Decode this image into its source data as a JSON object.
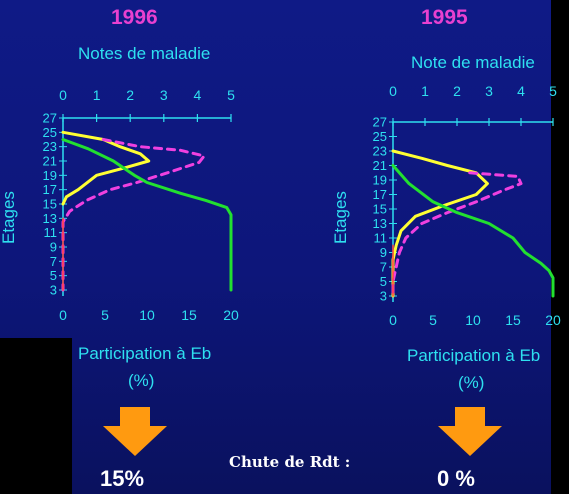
{
  "chart_data": [
    {
      "type": "line",
      "title": "1996",
      "xlabel_top": "Notes de maladie",
      "xlabel_bottom": "Participation à Eb",
      "xlabel_bottom_unit": "(%)",
      "ylabel": "Etages",
      "xlim_top": [
        0,
        5
      ],
      "xticks_top": [
        0,
        1,
        2,
        3,
        4,
        5
      ],
      "xlim_bottom": [
        0,
        20
      ],
      "xticks_bottom": [
        0,
        5,
        10,
        15,
        20
      ],
      "ylim": [
        3,
        27
      ],
      "yticks": [
        3,
        5,
        7,
        9,
        11,
        13,
        15,
        17,
        19,
        21,
        23,
        25,
        27
      ],
      "series": [
        {
          "color": "#ffff33",
          "style": "solid",
          "axis": "top",
          "points": [
            [
              0,
              25
            ],
            [
              1.2,
              24
            ],
            [
              1.7,
              23
            ],
            [
              2.3,
              22
            ],
            [
              2.55,
              21
            ],
            [
              1.8,
              20
            ],
            [
              1.0,
              19
            ],
            [
              0.45,
              17
            ],
            [
              0.1,
              16
            ],
            [
              0,
              15
            ]
          ]
        },
        {
          "color": "#f040e0",
          "style": "dashed",
          "axis": "top",
          "points": [
            [
              1.2,
              24
            ],
            [
              2.3,
              23
            ],
            [
              3.5,
              22.5
            ],
            [
              4.2,
              21.7
            ],
            [
              4.05,
              20.8
            ],
            [
              3.2,
              19.5
            ],
            [
              2.2,
              18
            ],
            [
              1.4,
              17
            ],
            [
              0.7,
              15.5
            ],
            [
              0.2,
              14
            ],
            [
              0,
              12.5
            ],
            [
              0,
              3
            ]
          ]
        },
        {
          "color": "#22e030",
          "style": "solid",
          "axis": "bottom",
          "points": [
            [
              0,
              24
            ],
            [
              3,
              22.7
            ],
            [
              6,
              21
            ],
            [
              8.5,
              19
            ],
            [
              10,
              18
            ],
            [
              14,
              16.5
            ],
            [
              17,
              15.5
            ],
            [
              19.5,
              14.5
            ],
            [
              20,
              13.5
            ],
            [
              20,
              3
            ]
          ]
        },
        {
          "color": "#ff4040",
          "style": "solid",
          "axis": "top",
          "points": [
            [
              0,
              3
            ],
            [
              0,
              13
            ]
          ]
        }
      ]
    },
    {
      "type": "line",
      "title": "1995",
      "xlabel_top": "Note de maladie",
      "xlabel_bottom": "Participation à Eb",
      "xlabel_bottom_unit": "(%)",
      "ylabel": "Etages",
      "xlim_top": [
        0,
        5
      ],
      "xticks_top": [
        0,
        1,
        2,
        3,
        4,
        5
      ],
      "xlim_bottom": [
        0,
        20
      ],
      "xticks_bottom": [
        0,
        5,
        10,
        15,
        20
      ],
      "ylim": [
        3,
        27
      ],
      "yticks": [
        3,
        5,
        7,
        9,
        11,
        13,
        15,
        17,
        19,
        21,
        23,
        25,
        27
      ],
      "series": [
        {
          "color": "#ffff33",
          "style": "solid",
          "axis": "top",
          "points": [
            [
              0,
              23
            ],
            [
              0.9,
              22
            ],
            [
              1.7,
              21
            ],
            [
              2.6,
              20
            ],
            [
              2.95,
              18.5
            ],
            [
              2.6,
              17
            ],
            [
              1.6,
              15.5
            ],
            [
              0.7,
              14
            ],
            [
              0.25,
              12
            ],
            [
              0.1,
              10
            ],
            [
              0,
              8
            ],
            [
              0,
              3
            ]
          ]
        },
        {
          "color": "#f040e0",
          "style": "dashed",
          "axis": "top",
          "points": [
            [
              2.4,
              20
            ],
            [
              3.9,
              19.5
            ],
            [
              4.0,
              18.5
            ],
            [
              3.4,
              17.5
            ],
            [
              2.6,
              16
            ],
            [
              1.7,
              14.5
            ],
            [
              0.9,
              13
            ],
            [
              0.4,
              11
            ],
            [
              0.2,
              9
            ],
            [
              0.1,
              7
            ],
            [
              0,
              5
            ],
            [
              0,
              3
            ]
          ]
        },
        {
          "color": "#22e030",
          "style": "solid",
          "axis": "bottom",
          "points": [
            [
              0,
              21
            ],
            [
              2,
              18.5
            ],
            [
              5,
              16
            ],
            [
              8,
              14.5
            ],
            [
              12,
              13
            ],
            [
              15,
              11
            ],
            [
              16.5,
              9
            ],
            [
              18.5,
              7.5
            ],
            [
              19.5,
              6.5
            ],
            [
              20,
              5.5
            ],
            [
              20,
              3
            ]
          ]
        },
        {
          "color": "#ff4040",
          "style": "solid",
          "axis": "top",
          "points": [
            [
              0,
              3
            ],
            [
              0,
              10
            ]
          ]
        }
      ]
    }
  ],
  "footer": {
    "chute_label": "Chute de Rdt :",
    "left_pct": "15%",
    "right_pct": "0 %",
    "arrow_color": "#ff9a10"
  }
}
